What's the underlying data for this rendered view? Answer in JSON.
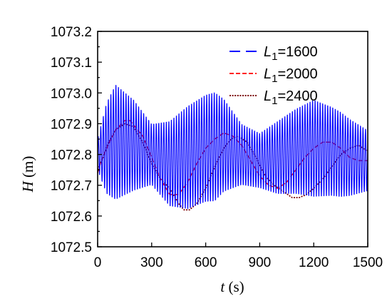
{
  "chart_data": {
    "type": "line",
    "xlabel": {
      "var": "t",
      "unit": " (s)"
    },
    "ylabel": {
      "var": "H",
      "unit": " (m)"
    },
    "xlim": [
      0,
      1500
    ],
    "ylim": [
      1072.5,
      1073.2
    ],
    "xticks": [
      "0",
      "300",
      "600",
      "900",
      "1200",
      "1500"
    ],
    "yticks": [
      "1072.5",
      "1072.6",
      "1072.7",
      "1072.8",
      "1072.9",
      "1073.0",
      "1073.1",
      "1073.2"
    ],
    "grid": false,
    "legend_position": "top-right",
    "series": [
      {
        "name_var": "L",
        "name_sub": "1",
        "name_value": "=1600",
        "color": "#0000ff",
        "style": "dashed",
        "oscillation_period_s": 14,
        "center": {
          "x": [
            0,
            100,
            200,
            300,
            400,
            500,
            600,
            700,
            800,
            900,
            1000,
            1100,
            1200,
            1300,
            1400,
            1500
          ],
          "y": [
            1072.8,
            1072.84,
            1072.83,
            1072.8,
            1072.77,
            1072.79,
            1072.82,
            1072.83,
            1072.8,
            1072.78,
            1072.79,
            1072.81,
            1072.82,
            1072.81,
            1072.79,
            1072.78
          ]
        },
        "halfwidth": {
          "x": [
            0,
            50,
            100,
            200,
            300,
            400,
            500,
            650,
            800,
            900,
            1000,
            1200,
            1350,
            1500
          ],
          "y": [
            0.05,
            0.15,
            0.19,
            0.15,
            0.1,
            0.14,
            0.17,
            0.18,
            0.1,
            0.09,
            0.12,
            0.16,
            0.14,
            0.1
          ]
        }
      },
      {
        "name_var": "L",
        "name_sub": "1",
        "name_value": "=2000",
        "color": "#ff0000",
        "style": "dashed",
        "x": [
          0,
          20,
          50,
          100,
          150,
          180,
          250,
          300,
          350,
          400,
          450,
          500,
          550,
          600,
          650,
          700,
          750,
          800,
          850,
          900,
          950,
          1000,
          1050,
          1100,
          1150,
          1200,
          1250,
          1300,
          1350,
          1400,
          1450,
          1500
        ],
        "y": [
          1072.74,
          1072.78,
          1072.82,
          1072.88,
          1072.91,
          1072.91,
          1072.86,
          1072.79,
          1072.72,
          1072.67,
          1072.67,
          1072.71,
          1072.77,
          1072.82,
          1072.85,
          1072.87,
          1072.86,
          1072.83,
          1072.78,
          1072.73,
          1072.7,
          1072.69,
          1072.71,
          1072.75,
          1072.79,
          1072.82,
          1072.84,
          1072.84,
          1072.82,
          1072.79,
          1072.78,
          1072.78
        ]
      },
      {
        "name_var": "L",
        "name_sub": "1",
        "name_value": "=2400",
        "color": "#7b0000",
        "style": "dotted",
        "x": [
          0,
          30,
          60,
          100,
          150,
          200,
          250,
          300,
          350,
          400,
          450,
          480,
          510,
          550,
          600,
          650,
          700,
          740,
          780,
          830,
          880,
          930,
          980,
          1030,
          1080,
          1120,
          1160,
          1200,
          1250,
          1300,
          1350,
          1400,
          1450,
          1500
        ],
        "y": [
          1072.75,
          1072.79,
          1072.84,
          1072.88,
          1072.9,
          1072.89,
          1072.84,
          1072.77,
          1072.72,
          1072.69,
          1072.64,
          1072.62,
          1072.62,
          1072.64,
          1072.69,
          1072.76,
          1072.82,
          1072.85,
          1072.86,
          1072.84,
          1072.79,
          1072.73,
          1072.7,
          1072.68,
          1072.66,
          1072.66,
          1072.67,
          1072.69,
          1072.72,
          1072.76,
          1072.8,
          1072.82,
          1072.83,
          1072.81
        ]
      }
    ]
  }
}
